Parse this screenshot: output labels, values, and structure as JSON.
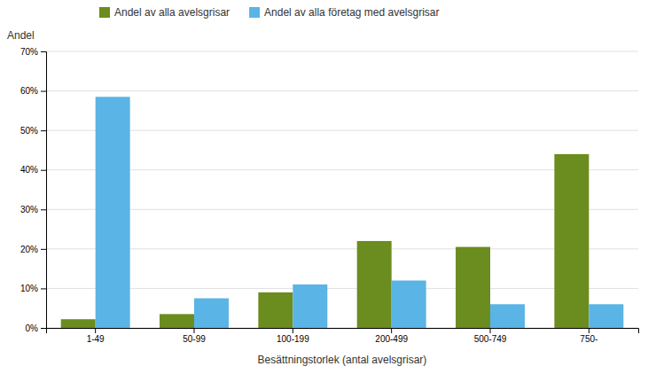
{
  "chart_data": {
    "type": "bar",
    "categories": [
      "1-49",
      "50-99",
      "100-199",
      "200-499",
      "500-749",
      "750-"
    ],
    "series": [
      {
        "name": "Andel av alla avelsgrisar",
        "color": "#6b8c1e",
        "values": [
          2.2,
          3.5,
          9.0,
          22.0,
          20.5,
          44.0
        ]
      },
      {
        "name": "Andel av alla företag med avelsgrisar",
        "color": "#5ab4e5",
        "values": [
          58.5,
          7.5,
          11.0,
          12.0,
          6.0,
          6.0
        ]
      }
    ],
    "xlabel": "Besättningstorlek (antal avelsgrisar)",
    "ylabel": "Andel",
    "ylim": [
      0,
      70
    ],
    "yticks": [
      {
        "value": 0,
        "label": "0%"
      },
      {
        "value": 10,
        "label": "10%"
      },
      {
        "value": 20,
        "label": "20%"
      },
      {
        "value": 30,
        "label": "30%"
      },
      {
        "value": 40,
        "label": "40%"
      },
      {
        "value": 50,
        "label": "50%"
      },
      {
        "value": 60,
        "label": "60%"
      },
      {
        "value": 70,
        "label": "70%"
      }
    ],
    "grid": true,
    "legend": "top"
  }
}
